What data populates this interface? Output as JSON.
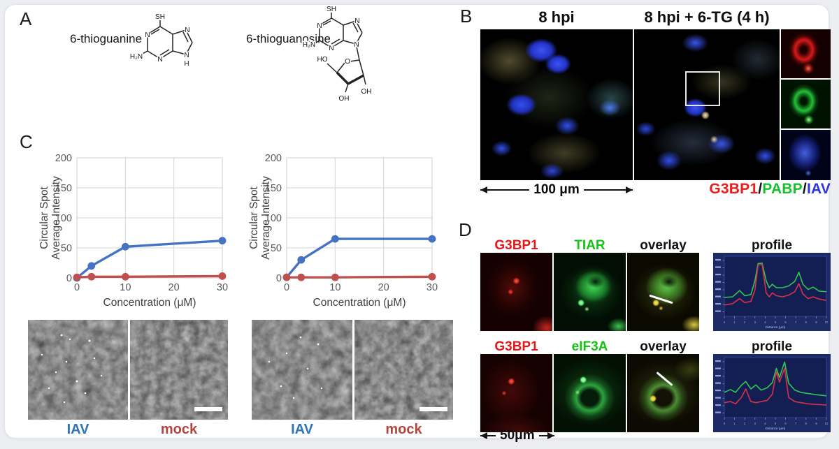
{
  "page": {
    "background": "#eceef1",
    "card_background": "#ffffff"
  },
  "panelA": {
    "label": "A",
    "molecule1": {
      "name": "6-thioguanine",
      "sh": "SH",
      "h2n": "H₂N",
      "n_a": "N",
      "n_b": "N",
      "n_c": "N",
      "n_d": "N",
      "h": "H"
    },
    "molecule2": {
      "name": "6-thioguanosine",
      "sh": "SH",
      "h2n": "H₂N",
      "n_a": "N",
      "n_b": "N",
      "n_c": "N",
      "n_d": "N",
      "ho": "HO",
      "o": "O",
      "oh1": "OH",
      "oh2": "OH"
    }
  },
  "panelB": {
    "label": "B",
    "left_title": "8 hpi",
    "right_title": "8 hpi + 6-TG (4 h)",
    "scale_label": "100 μm",
    "legend": [
      {
        "text": "G3BP1",
        "color": "#ed1c1c"
      },
      {
        "text": "/",
        "color": "#111111"
      },
      {
        "text": "PABP",
        "color": "#17c22e"
      },
      {
        "text": "/",
        "color": "#111111"
      },
      {
        "text": "IAV",
        "color": "#2a35e8"
      }
    ]
  },
  "panelC": {
    "label": "C",
    "groups": [
      {
        "iav_label": "IAV",
        "mock_label": "mock",
        "iav_color": "#2e74b8",
        "mock_color": "#b5443f"
      },
      {
        "iav_label": "IAV",
        "mock_label": "mock",
        "iav_color": "#2e74b8",
        "mock_color": "#b5443f"
      }
    ]
  },
  "panelD": {
    "label": "D",
    "rows": [
      {
        "col1": {
          "text": "G3BP1",
          "color": "#e61717"
        },
        "col2": {
          "text": "TIAR",
          "color": "#16c216"
        },
        "col3": {
          "text": "overlay",
          "color": "#111111"
        },
        "col4": {
          "text": "profile",
          "color": "#111111"
        }
      },
      {
        "col1": {
          "text": "G3BP1",
          "color": "#e61717"
        },
        "col2": {
          "text": "eIF3A",
          "color": "#16c216"
        },
        "col3": {
          "text": "overlay",
          "color": "#111111"
        },
        "col4": {
          "text": "profile",
          "color": "#111111"
        }
      }
    ],
    "scale_label": "50μm"
  },
  "chart_data": [
    {
      "type": "line",
      "panel": "C-left-dose-response",
      "title": "",
      "xlabel": "Concentration (μM)",
      "ylabel": "Circular Spot Average Intensity",
      "ylabel_lines": [
        "Circular Spot",
        "Average Intensity"
      ],
      "xlim": [
        0,
        30
      ],
      "ylim": [
        0,
        200
      ],
      "xticks": [
        0,
        10,
        20,
        30
      ],
      "yticks": [
        0,
        50,
        100,
        150,
        200
      ],
      "grid": true,
      "legend_position": "none",
      "series": [
        {
          "name": "IAV",
          "color": "#4473c5",
          "x": [
            0,
            3,
            10,
            30
          ],
          "values": [
            0,
            20,
            52,
            62
          ]
        },
        {
          "name": "mock",
          "color": "#c0504d",
          "x": [
            0,
            3,
            10,
            30
          ],
          "values": [
            1,
            2,
            2,
            3
          ]
        }
      ]
    },
    {
      "type": "line",
      "panel": "C-right-dose-response",
      "title": "",
      "xlabel": "Concentration (μM)",
      "ylabel": "Circular Spot Average Intensity",
      "ylabel_lines": [
        "Circular Spot",
        "Average Intensity"
      ],
      "xlim": [
        0,
        30
      ],
      "ylim": [
        0,
        200
      ],
      "xticks": [
        0,
        10,
        20,
        30
      ],
      "yticks": [
        0,
        50,
        100,
        150,
        200
      ],
      "grid": true,
      "legend_position": "none",
      "series": [
        {
          "name": "IAV",
          "color": "#4473c5",
          "x": [
            0,
            3,
            10,
            30
          ],
          "values": [
            1,
            30,
            65,
            65
          ]
        },
        {
          "name": "mock",
          "color": "#c0504d",
          "x": [
            0,
            3,
            10,
            30
          ],
          "values": [
            1,
            1,
            1,
            2
          ]
        }
      ]
    },
    {
      "type": "line",
      "panel": "D-profile-TIAR",
      "title": "profile",
      "xlabel": "Distance (μm)",
      "xlim": [
        0,
        10
      ],
      "ylim": [
        0,
        100
      ],
      "xticks": [
        0,
        1,
        2,
        3,
        4,
        5,
        6,
        7,
        8,
        9,
        10
      ],
      "grid": false,
      "legend_position": "none",
      "series": [
        {
          "name": "TIAR",
          "color": "#2fc556",
          "points": [
            [
              0,
              33
            ],
            [
              0.8,
              34
            ],
            [
              1.5,
              45
            ],
            [
              2,
              36
            ],
            [
              2.6,
              38
            ],
            [
              3,
              62
            ],
            [
              3.3,
              92
            ],
            [
              3.7,
              93
            ],
            [
              4.1,
              62
            ],
            [
              4.4,
              50
            ],
            [
              4.7,
              56
            ],
            [
              5.1,
              50
            ],
            [
              5.7,
              50
            ],
            [
              6.3,
              53
            ],
            [
              6.9,
              61
            ],
            [
              7.3,
              77
            ],
            [
              7.7,
              56
            ],
            [
              8.2,
              47
            ],
            [
              8.7,
              51
            ],
            [
              9.3,
              44
            ],
            [
              10,
              43
            ]
          ]
        },
        {
          "name": "G3BP1",
          "color": "#d8314a",
          "points": [
            [
              0,
              20
            ],
            [
              0.8,
              22
            ],
            [
              1.5,
              31
            ],
            [
              2,
              24
            ],
            [
              2.6,
              26
            ],
            [
              3,
              46
            ],
            [
              3.3,
              89
            ],
            [
              3.7,
              91
            ],
            [
              4.1,
              41
            ],
            [
              4.4,
              34
            ],
            [
              4.7,
              41
            ],
            [
              5.1,
              36
            ],
            [
              5.7,
              34
            ],
            [
              6.3,
              37
            ],
            [
              6.9,
              43
            ],
            [
              7.3,
              57
            ],
            [
              7.7,
              39
            ],
            [
              8.2,
              31
            ],
            [
              8.7,
              34
            ],
            [
              9.3,
              30
            ],
            [
              10,
              28
            ]
          ]
        }
      ]
    },
    {
      "type": "line",
      "panel": "D-profile-eIF3A",
      "title": "profile",
      "xlabel": "Distance (μm)",
      "xlim": [
        0,
        10
      ],
      "ylim": [
        0,
        100
      ],
      "xticks": [
        0,
        1,
        2,
        3,
        4,
        5,
        6,
        7,
        8,
        9,
        10
      ],
      "grid": false,
      "legend_position": "none",
      "series": [
        {
          "name": "eIF3A",
          "color": "#2fc556",
          "points": [
            [
              0,
              44
            ],
            [
              0.6,
              49
            ],
            [
              1.1,
              44
            ],
            [
              1.7,
              57
            ],
            [
              2.1,
              63
            ],
            [
              2.6,
              50
            ],
            [
              3.1,
              57
            ],
            [
              3.6,
              48
            ],
            [
              4.2,
              52
            ],
            [
              4.7,
              61
            ],
            [
              5.1,
              86
            ],
            [
              5.4,
              70
            ],
            [
              5.9,
              97
            ],
            [
              6.3,
              60
            ],
            [
              6.9,
              48
            ],
            [
              7.5,
              44
            ],
            [
              8.2,
              42
            ],
            [
              9,
              40
            ],
            [
              10,
              38
            ]
          ]
        },
        {
          "name": "G3BP1",
          "color": "#d8314a",
          "points": [
            [
              0,
              26
            ],
            [
              0.6,
              28
            ],
            [
              1.1,
              24
            ],
            [
              1.7,
              36
            ],
            [
              2.1,
              50
            ],
            [
              2.6,
              28
            ],
            [
              3.1,
              26
            ],
            [
              3.6,
              28
            ],
            [
              4.2,
              30
            ],
            [
              4.7,
              41
            ],
            [
              5.1,
              80
            ],
            [
              5.4,
              62
            ],
            [
              5.9,
              86
            ],
            [
              6.3,
              35
            ],
            [
              6.9,
              28
            ],
            [
              7.5,
              26
            ],
            [
              8.2,
              24
            ],
            [
              9,
              23
            ],
            [
              10,
              22
            ]
          ]
        }
      ]
    }
  ]
}
